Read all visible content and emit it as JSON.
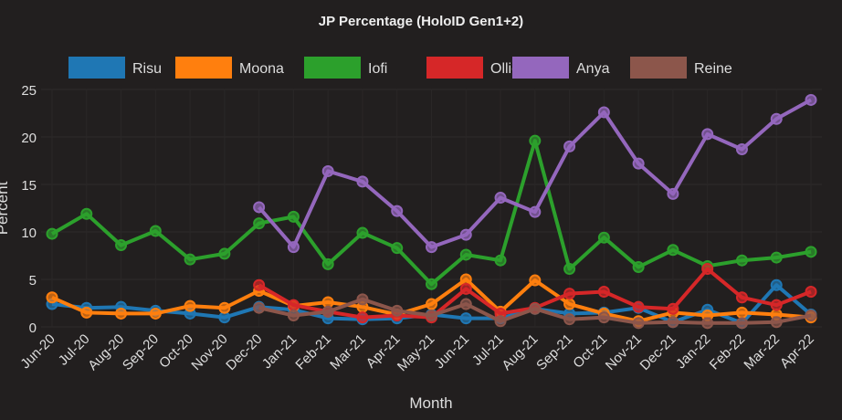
{
  "chart_data": {
    "type": "line",
    "title": "JP Percentage (HoloID Gen1+2)",
    "xlabel": "Month",
    "ylabel": "Percent",
    "ylim": [
      0,
      25
    ],
    "yticks": [
      "0",
      "5",
      "10",
      "15",
      "20",
      "25"
    ],
    "grid": true,
    "legend_position": "top",
    "categories": [
      "Jun-20",
      "Jul-20",
      "Aug-20",
      "Sep-20",
      "Oct-20",
      "Nov-20",
      "Dec-20",
      "Jan-21",
      "Feb-21",
      "Mar-21",
      "Apr-21",
      "May-21",
      "Jun-21",
      "Jul-21",
      "Aug-21",
      "Sep-21",
      "Oct-21",
      "Nov-21",
      "Dec-21",
      "Jan-22",
      "Feb-22",
      "Mar-22",
      "Apr-22"
    ],
    "series": [
      {
        "name": "Risu",
        "color": "#1f77b4",
        "values": [
          2.4,
          2.0,
          2.1,
          1.7,
          1.4,
          1.0,
          2.1,
          1.8,
          0.9,
          0.8,
          0.9,
          1.3,
          0.9,
          0.9,
          1.9,
          1.4,
          1.5,
          2.0,
          0.5,
          1.8,
          0.4,
          4.4,
          1.3
        ]
      },
      {
        "name": "Moona",
        "color": "#ff7f0e",
        "values": [
          3.1,
          1.5,
          1.4,
          1.4,
          2.2,
          2.0,
          3.8,
          2.2,
          2.6,
          2.1,
          1.3,
          2.4,
          5.0,
          1.6,
          4.9,
          2.4,
          1.4,
          0.6,
          1.5,
          1.2,
          1.5,
          1.3,
          1.0
        ]
      },
      {
        "name": "Iofi",
        "color": "#2ca02c",
        "values": [
          9.8,
          11.9,
          8.6,
          10.1,
          7.1,
          7.7,
          10.9,
          11.6,
          6.6,
          9.9,
          8.3,
          4.5,
          7.6,
          7.0,
          19.6,
          6.1,
          9.4,
          6.3,
          8.1,
          6.4,
          7.0,
          7.3,
          7.9
        ]
      },
      {
        "name": "Ollie",
        "color": "#d62728",
        "values": [
          null,
          null,
          null,
          null,
          null,
          null,
          4.4,
          2.3,
          1.6,
          1.0,
          1.2,
          1.0,
          4.0,
          1.4,
          2.0,
          3.5,
          3.7,
          2.1,
          1.9,
          6.1,
          3.1,
          2.3,
          3.7
        ]
      },
      {
        "name": "Anya",
        "color": "#9467bd",
        "values": [
          null,
          null,
          null,
          null,
          null,
          null,
          12.6,
          8.4,
          16.4,
          15.3,
          12.2,
          8.4,
          9.7,
          13.6,
          12.1,
          19.0,
          22.6,
          17.2,
          14.0,
          20.3,
          18.7,
          21.9,
          23.9
        ]
      },
      {
        "name": "Reine",
        "color": "#8c564b",
        "values": [
          null,
          null,
          null,
          null,
          null,
          null,
          2.0,
          1.2,
          1.6,
          2.9,
          1.7,
          1.2,
          2.4,
          0.6,
          1.9,
          0.8,
          1.0,
          0.4,
          0.5,
          0.4,
          0.4,
          0.5,
          1.2
        ]
      }
    ]
  }
}
